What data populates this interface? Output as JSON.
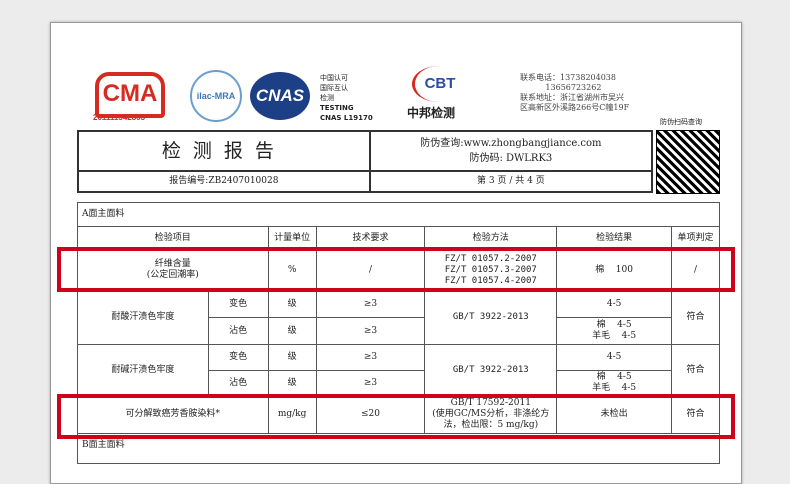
{
  "logos": {
    "cma_text": "CMA",
    "cma_number": "201111342803",
    "ilac_text": "ilac-MRA",
    "cnas_text": "CNAS",
    "cnas_lines": [
      "中国认可",
      "国际互认",
      "检测",
      "TESTING",
      "CNAS L19170"
    ],
    "cbt_text": "CBT",
    "cbt_name": "中邦检测"
  },
  "contact": {
    "text": "联系电话：13738204038\n          13656723262\n联系地址：浙江省湖州市吴兴\n区高新区外溪路266号C幢19F"
  },
  "qr": {
    "label": "防伪扫码查询"
  },
  "header": {
    "title": "检测报告",
    "anti_fake_query": "防伪查询:www.zhongbangjiance.com",
    "anti_fake_code": "防伪码: DWLRK3",
    "report_no": "报告编号:ZB2407010028",
    "page": "第 3 页 / 共 4 页"
  },
  "table": {
    "section_a": "A面主面料",
    "section_b": "B面主面料",
    "headers": [
      "检验项目",
      "计量单位",
      "技术要求",
      "检验方法",
      "检验结果",
      "单项判定"
    ],
    "fiber": {
      "item": "纤维含量",
      "item_sub": "(公定回潮率)",
      "unit": "%",
      "req": "/",
      "methods": [
        "FZ/T 01057.2-2007",
        "FZ/T 01057.3-2007",
        "FZ/T 01057.4-2007"
      ],
      "result": "棉    100",
      "verdict": "/"
    },
    "acid": {
      "item": "耐酸汗渍色牢度",
      "sub1": "变色",
      "sub2": "沾色",
      "unit": "级",
      "req": "≥3",
      "method": "GB/T 3922-2013",
      "result1": "4-5",
      "result2a": "棉    4-5",
      "result2b": "羊毛    4-5",
      "verdict": "符合"
    },
    "alkali": {
      "item": "耐碱汗渍色牢度",
      "sub1": "变色",
      "sub2": "沾色",
      "unit": "级",
      "req": "≥3",
      "method": "GB/T 3922-2013",
      "result1": "4-5",
      "result2a": "棉    4-5",
      "result2b": "羊毛    4-5",
      "verdict": "符合"
    },
    "azo": {
      "item": "可分解致癌芳香胺染料*",
      "unit": "mg/kg",
      "req": "≤20",
      "methods": [
        "GB/T 17592-2011",
        "(使用GC/MS分析，非涤纶方",
        "法，检出限：5 mg/kg)"
      ],
      "result": "未检出",
      "verdict": "符合"
    }
  },
  "highlight_color": "#d0021b"
}
